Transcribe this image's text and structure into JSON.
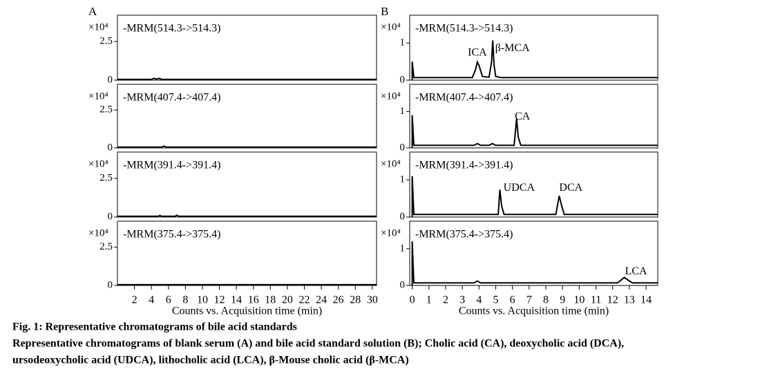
{
  "chart_data": [
    {
      "type": "line",
      "panel_label": "A",
      "subtitle": "-MRM(514.3->514.3)",
      "y_unit": "×10⁴",
      "color": "#000000",
      "x": [
        0,
        4.0,
        4.3,
        4.6,
        4.9,
        5.2,
        30.5
      ],
      "values": [
        0.05,
        0.05,
        0.12,
        0.06,
        0.12,
        0.05,
        0.05
      ],
      "xlim": [
        0,
        30.5
      ],
      "ylim": [
        0,
        4.2
      ],
      "yticks": [
        0,
        2.5
      ]
    },
    {
      "type": "line",
      "subtitle": "-MRM(407.4->407.4)",
      "y_unit": "×10⁴",
      "color": "#000000",
      "x": [
        0,
        5.2,
        5.5,
        5.8,
        30.5
      ],
      "values": [
        0.05,
        0.05,
        0.12,
        0.05,
        0.05
      ],
      "xlim": [
        0,
        30.5
      ],
      "ylim": [
        0,
        4.2
      ],
      "yticks": [
        0,
        2.5
      ]
    },
    {
      "type": "line",
      "subtitle": "-MRM(391.4->391.4)",
      "y_unit": "×10⁴",
      "color": "#000000",
      "x": [
        0,
        4.8,
        5.0,
        5.2,
        6.8,
        7.0,
        7.2,
        30.5
      ],
      "values": [
        0.05,
        0.05,
        0.1,
        0.05,
        0.05,
        0.12,
        0.05,
        0.05
      ],
      "xlim": [
        0,
        30.5
      ],
      "ylim": [
        0,
        4.2
      ],
      "yticks": [
        0,
        2.5
      ]
    },
    {
      "type": "line",
      "subtitle": "-MRM(375.4->375.4)",
      "y_unit": "×10⁴",
      "color": "#000000",
      "x": [
        0,
        30.5
      ],
      "values": [
        0.05,
        0.05
      ],
      "xlim": [
        0,
        30.5
      ],
      "ylim": [
        0,
        4.2
      ],
      "yticks": [
        0,
        2.5
      ],
      "xticks": [
        2,
        4,
        6,
        8,
        10,
        12,
        14,
        16,
        18,
        20,
        22,
        24,
        26,
        28,
        30
      ],
      "xlabel": "Counts vs. Acquisition time (min)"
    },
    {
      "type": "line",
      "panel_label": "B",
      "subtitle": "-MRM(514.3->514.3)",
      "y_unit": "×10⁴",
      "color": "#000000",
      "x": [
        0,
        0,
        0.1,
        3.6,
        3.8,
        3.9,
        4.0,
        4.2,
        4.6,
        4.75,
        4.82,
        4.9,
        5.0,
        5.3,
        14.7
      ],
      "values": [
        0,
        0.5,
        0.07,
        0.07,
        0.3,
        0.49,
        0.4,
        0.1,
        0.08,
        0.5,
        1.07,
        0.4,
        0.1,
        0.07,
        0.07
      ],
      "annotations": [
        "ICA",
        "β-MCA"
      ],
      "xlim": [
        -0.15,
        14.7
      ],
      "ylim": [
        0,
        1.75
      ],
      "yticks": [
        0,
        1
      ]
    },
    {
      "type": "line",
      "subtitle": "-MRM(407.4->407.4)",
      "y_unit": "×10⁴",
      "color": "#000000",
      "x": [
        0,
        0,
        0.1,
        3.7,
        3.9,
        4.1,
        4.6,
        4.8,
        5.0,
        6.1,
        6.25,
        6.35,
        6.5,
        14.7
      ],
      "values": [
        0,
        0.9,
        0.07,
        0.07,
        0.12,
        0.07,
        0.07,
        0.12,
        0.07,
        0.07,
        0.8,
        0.3,
        0.07,
        0.07
      ],
      "annotations": [
        "CA"
      ],
      "xlim": [
        -0.15,
        14.7
      ],
      "ylim": [
        0,
        1.75
      ],
      "yticks": [
        0,
        1
      ]
    },
    {
      "type": "line",
      "subtitle": "-MRM(391.4->391.4)",
      "y_unit": "×10⁴",
      "color": "#000000",
      "x": [
        0,
        0,
        0.1,
        5.15,
        5.25,
        5.35,
        5.5,
        8.6,
        8.8,
        8.95,
        9.1,
        14.7
      ],
      "values": [
        0,
        1.1,
        0.07,
        0.07,
        0.74,
        0.3,
        0.07,
        0.07,
        0.57,
        0.3,
        0.07,
        0.07
      ],
      "annotations": [
        "UDCA",
        "DCA"
      ],
      "xlim": [
        -0.15,
        14.7
      ],
      "ylim": [
        0,
        1.75
      ],
      "yticks": [
        0,
        1
      ]
    },
    {
      "type": "line",
      "subtitle": "-MRM(375.4->375.4)",
      "y_unit": "×10⁴",
      "color": "#000000",
      "x": [
        0,
        0,
        0.1,
        3.7,
        3.9,
        4.1,
        12.3,
        12.7,
        13.0,
        13.2,
        14.7
      ],
      "values": [
        0,
        1.2,
        0.07,
        0.07,
        0.12,
        0.07,
        0.07,
        0.22,
        0.12,
        0.07,
        0.07
      ],
      "annotations": [
        "LCA"
      ],
      "xlim": [
        -0.15,
        14.7
      ],
      "ylim": [
        0,
        1.75
      ],
      "yticks": [
        0,
        1
      ],
      "xticks": [
        0,
        1,
        2,
        3,
        4,
        5,
        6,
        7,
        8,
        9,
        10,
        11,
        12,
        13,
        14
      ],
      "xlabel": "Counts vs. Acquisition time (min)"
    }
  ],
  "caption": {
    "title": "Fig. 1: Representative chromatograms of bile acid standards",
    "text": [
      "Representative chromatograms of blank serum (A) and bile acid standard solution (B); Cholic acid (CA), deoxycholic acid (DCA),",
      "ursodeoxycholic acid (UDCA), lithocholic acid (LCA), β-Mouse cholic acid (β-MCA)"
    ]
  }
}
